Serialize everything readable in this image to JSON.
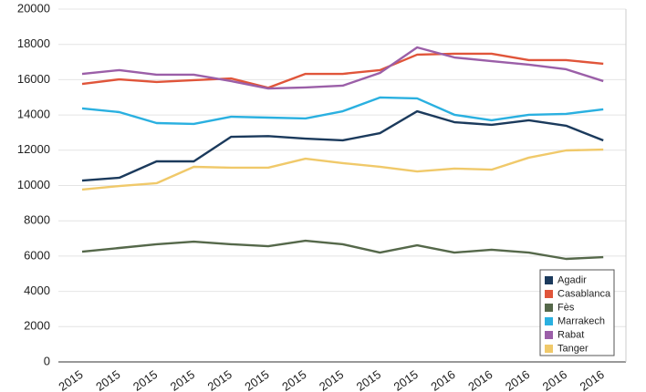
{
  "chart_data": {
    "type": "line",
    "categories": [
      "2015",
      "2015",
      "2015",
      "2015",
      "2015",
      "2015",
      "2015",
      "2015",
      "2015",
      "2015",
      "2016",
      "2016",
      "2016",
      "2016",
      "2016"
    ],
    "series": [
      {
        "name": "Agadir",
        "color": "#1b3a5c",
        "values": [
          10280,
          10440,
          11370,
          11370,
          12760,
          12800,
          12660,
          12560,
          12970,
          14210,
          13590,
          13440,
          13700,
          13390,
          12560
        ]
      },
      {
        "name": "Casablanca",
        "color": "#e0553a",
        "values": [
          15760,
          16020,
          15870,
          15970,
          16070,
          15540,
          16330,
          16330,
          16540,
          17420,
          17470,
          17470,
          17110,
          17110,
          16900
        ]
      },
      {
        "name": "Fès",
        "color": "#55684a",
        "values": [
          6250,
          6460,
          6670,
          6820,
          6670,
          6560,
          6870,
          6670,
          6200,
          6610,
          6200,
          6360,
          6200,
          5840,
          5940
        ]
      },
      {
        "name": "Marrakech",
        "color": "#2ab0e0",
        "values": [
          14370,
          14160,
          13540,
          13490,
          13900,
          13850,
          13800,
          14210,
          14990,
          14940,
          14010,
          13700,
          14010,
          14060,
          14320
        ]
      },
      {
        "name": "Rabat",
        "color": "#9b5fa8",
        "values": [
          16330,
          16540,
          16280,
          16280,
          15920,
          15500,
          15560,
          15660,
          16380,
          17830,
          17260,
          17050,
          16850,
          16590,
          15920
        ]
      },
      {
        "name": "Tanger",
        "color": "#f0c96a",
        "values": [
          9770,
          9970,
          10130,
          11060,
          11010,
          11010,
          11520,
          11270,
          11060,
          10800,
          10960,
          10900,
          11580,
          11990,
          12040
        ]
      }
    ],
    "ylim": [
      0,
      20000
    ],
    "yticks": [
      0,
      2000,
      4000,
      6000,
      8000,
      10000,
      12000,
      14000,
      16000,
      18000,
      20000
    ],
    "grid": true,
    "legend": "lower right"
  }
}
